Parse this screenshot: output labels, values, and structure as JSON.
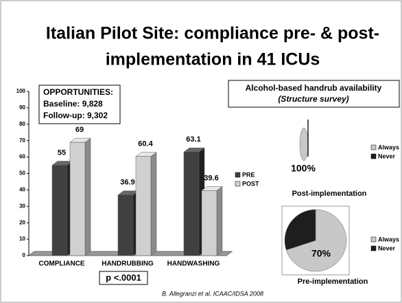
{
  "title": [
    "Italian Pilot Site: compliance pre- & post-",
    "implementation in 41 ICUs"
  ],
  "footnote": "B. Allegranzi et al. ICAAC/IDSA 2008",
  "chart_data": [
    {
      "type": "bar",
      "categories": [
        "COMPLIANCE",
        "HANDRUBBING",
        "HANDWASHING"
      ],
      "series": [
        {
          "name": "PRE",
          "color": "#404040",
          "values": [
            55,
            36.9,
            63.1
          ]
        },
        {
          "name": "POST",
          "color": "#d0d0d0",
          "values": [
            69,
            60.4,
            39.6
          ]
        }
      ],
      "ylim": [
        0,
        100
      ],
      "yticks": [
        0,
        10,
        20,
        30,
        40,
        50,
        60,
        70,
        80,
        90,
        100
      ],
      "legend": "right",
      "annotations": [
        "OPPORTUNITIES:",
        "Baseline: 9,828",
        "Follow-up: 9,302",
        "p <.0001"
      ]
    },
    {
      "type": "pie",
      "header": [
        "Alcohol-based handrub availability",
        "(Structure survey)"
      ],
      "title": "Post-implementation",
      "categories": [
        "Always",
        "Never"
      ],
      "values": [
        100,
        0
      ],
      "value_labels": [
        "100%",
        null
      ],
      "colors": [
        "#c8c8c8",
        "#1e1e1e"
      ],
      "legend": "right"
    },
    {
      "type": "pie",
      "title": "Pre-implementation",
      "categories": [
        "Always",
        "Never"
      ],
      "values": [
        70,
        30
      ],
      "value_labels": [
        "70%",
        null
      ],
      "colors": [
        "#c8c8c8",
        "#1e1e1e"
      ],
      "legend": "right"
    }
  ]
}
